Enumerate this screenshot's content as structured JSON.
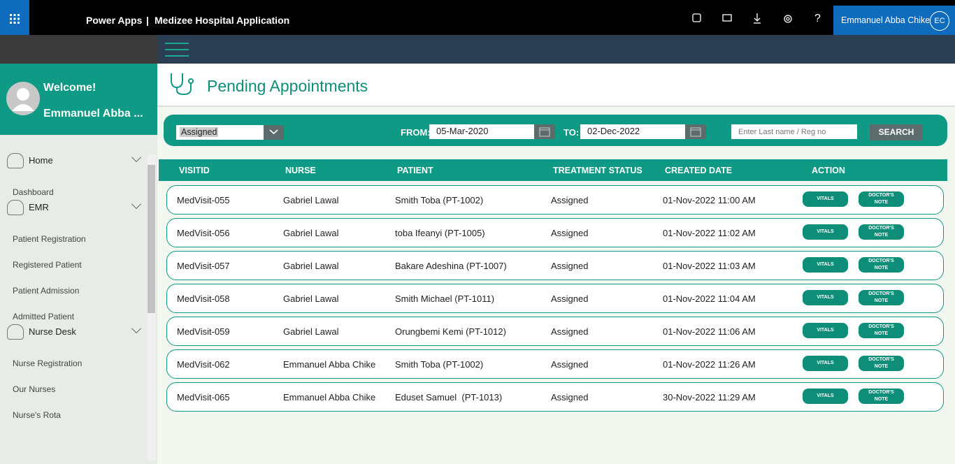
{
  "topbar": {
    "app": "Power Apps",
    "separator": "|",
    "title": "Medizee Hospital Application",
    "help": "?",
    "user": "Emmanuel Abba Chike",
    "initials": "EC"
  },
  "sidebar": {
    "welcome": "Welcome!",
    "user_name": "Emmanuel Abba ...",
    "menu": [
      {
        "label": "Home",
        "items": [
          "Dashboard"
        ]
      },
      {
        "label": "EMR",
        "items": [
          "Patient Registration",
          "Registered Patient",
          "Patient Admission",
          "Admitted Patient"
        ]
      },
      {
        "label": "Nurse Desk",
        "items": [
          "Nurse Registration",
          "Our Nurses",
          "Nurse's Rota"
        ]
      }
    ]
  },
  "page": {
    "title": "Pending Appointments"
  },
  "filters": {
    "status": "Assigned",
    "from_label": "FROM:",
    "from": "05-Mar-2020",
    "to_label": "TO:",
    "to": "02-Dec-2022",
    "search_placeholder": "Enter Last name / Reg no",
    "search_button": "SEARCH"
  },
  "table": {
    "columns": [
      "VISITID",
      "NURSE",
      "PATIENT",
      "TREATMENT STATUS",
      "CREATED DATE",
      "ACTION"
    ],
    "actions": [
      "VITALS",
      "DOCTOR'S NOTE"
    ],
    "rows": [
      [
        "MedVisit-055",
        "Gabriel Lawal",
        "Smith Toba (PT-1002)",
        "Assigned",
        "01-Nov-2022 11:00 AM"
      ],
      [
        "MedVisit-056",
        "Gabriel Lawal",
        "toba Ifeanyi (PT-1005)",
        "Assigned",
        "01-Nov-2022 11:02 AM"
      ],
      [
        "MedVisit-057",
        "Gabriel Lawal",
        "Bakare Adeshina (PT-1007)",
        "Assigned",
        "01-Nov-2022 11:03 AM"
      ],
      [
        "MedVisit-058",
        "Gabriel Lawal",
        "Smith Michael (PT-1011)",
        "Assigned",
        "01-Nov-2022 11:04 AM"
      ],
      [
        "MedVisit-059",
        "Gabriel Lawal",
        "Orungbemi Kemi (PT-1012)",
        "Assigned",
        "01-Nov-2022 11:06 AM"
      ],
      [
        "MedVisit-062",
        "Emmanuel Abba Chike",
        "Smith Toba (PT-1002)",
        "Assigned",
        "01-Nov-2022 11:26 AM"
      ],
      [
        "MedVisit-065",
        "Emmanuel Abba Chike",
        "Eduset Samuel  (PT-1013)",
        "Assigned",
        "30-Nov-2022 11:29 AM"
      ]
    ]
  }
}
